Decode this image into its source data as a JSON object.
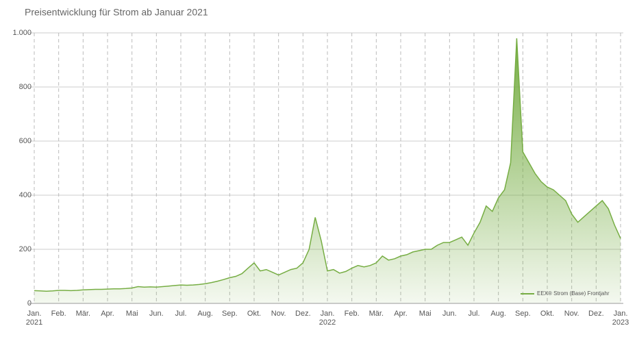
{
  "chart_data": {
    "type": "area",
    "title": "Preisentwicklung für Strom ab Januar 2021",
    "categories": [
      "Jan. 2021",
      null,
      null,
      null,
      "Feb.",
      null,
      null,
      null,
      "Mär.",
      null,
      null,
      null,
      "Apr.",
      null,
      null,
      null,
      "Mai",
      null,
      null,
      null,
      "Jun.",
      null,
      null,
      null,
      "Jul.",
      null,
      null,
      null,
      "Aug.",
      null,
      null,
      null,
      "Sep.",
      null,
      null,
      null,
      "Okt.",
      null,
      null,
      null,
      "Nov.",
      null,
      null,
      null,
      "Dez.",
      null,
      null,
      null,
      "Jan. 2022",
      null,
      null,
      null,
      "Feb.",
      null,
      null,
      null,
      "Mär.",
      null,
      null,
      null,
      "Apr.",
      null,
      null,
      null,
      "Mai",
      null,
      null,
      null,
      "Jun.",
      null,
      null,
      null,
      "Jul.",
      null,
      null,
      null,
      "Aug.",
      null,
      null,
      null,
      "Sep.",
      null,
      null,
      null,
      "Okt.",
      null,
      null,
      null,
      "Nov.",
      null,
      null,
      null,
      "Dez.",
      null,
      null,
      null,
      "Jan. 2023"
    ],
    "series": [
      {
        "name": "EEX® Strom (Base) Frontjahr",
        "color": "#76ad43",
        "values": [
          47,
          46,
          45,
          46,
          48,
          48,
          47,
          48,
          50,
          51,
          52,
          52,
          53,
          54,
          54,
          55,
          57,
          62,
          60,
          61,
          60,
          62,
          64,
          66,
          68,
          67,
          68,
          70,
          73,
          77,
          82,
          88,
          95,
          100,
          110,
          130,
          150,
          120,
          125,
          115,
          105,
          115,
          125,
          130,
          150,
          200,
          318,
          230,
          120,
          125,
          112,
          118,
          130,
          140,
          135,
          140,
          150,
          175,
          160,
          165,
          175,
          180,
          190,
          195,
          200,
          200,
          215,
          225,
          225,
          235,
          245,
          215,
          260,
          300,
          360,
          340,
          390,
          420,
          520,
          980,
          560,
          520,
          480,
          450,
          430,
          420,
          400,
          380,
          330,
          300,
          320,
          340,
          360,
          380,
          350,
          290,
          240
        ]
      }
    ],
    "ylim": [
      0,
      1000
    ],
    "yticks": [
      0,
      200,
      400,
      600,
      800,
      {
        "value": 1000,
        "label": "1.000"
      }
    ],
    "grid": true,
    "legend": "lower right"
  }
}
